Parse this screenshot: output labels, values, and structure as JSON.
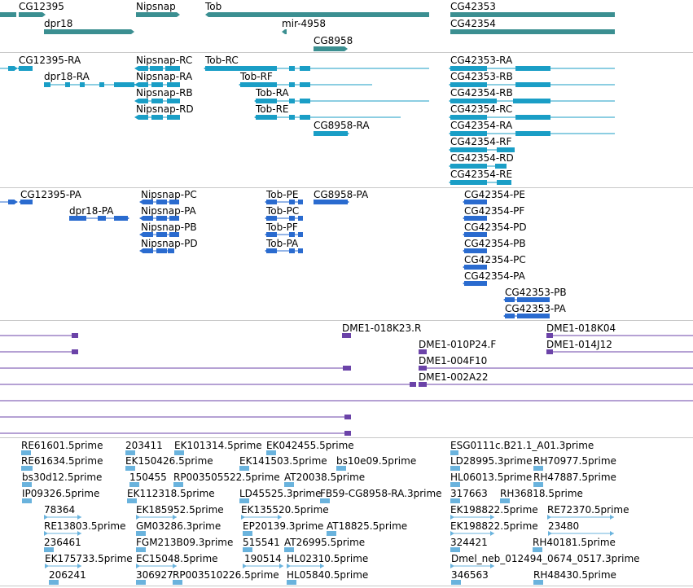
{
  "colors": {
    "gene": "#3b8f91",
    "mrna": "#1a9ec6",
    "protein": "#2a6bcf",
    "clone": "#6b43a8",
    "est": "#6ab3dd",
    "separator": "#c8c8c8"
  },
  "tracks": {
    "gene": {
      "labels": [
        "CG12395",
        "Nipsnap",
        "Tob",
        "CG42353",
        "dpr18",
        "mir-4958",
        "CG42354",
        "CG8958"
      ]
    },
    "transcript": {
      "labels": [
        "CG12395-RA",
        "Nipsnap-RC",
        "Tob-RC",
        "CG42353-RA",
        "dpr18-RA",
        "Nipsnap-RA",
        "Tob-RF",
        "CG42353-RB",
        "Nipsnap-RB",
        "Tob-RA",
        "CG42354-RB",
        "Nipsnap-RD",
        "Tob-RE",
        "CG42354-RC",
        "CG8958-RA",
        "CG42354-RA",
        "CG42354-RF",
        "CG42354-RD",
        "CG42354-RE"
      ]
    },
    "protein": {
      "labels": [
        "CG12395-PA",
        "Nipsnap-PC",
        "Tob-PE",
        "CG8958-PA",
        "CG42354-PE",
        "dpr18-PA",
        "Nipsnap-PA",
        "Tob-PC",
        "CG42354-PF",
        "Nipsnap-PB",
        "Tob-PF",
        "CG42354-PD",
        "Nipsnap-PD",
        "Tob-PA",
        "CG42354-PB",
        "CG42354-PC",
        "CG42354-PA",
        "CG42353-PB",
        "CG42353-PA"
      ]
    },
    "clone": {
      "labels": [
        "DME1-018K23.R",
        "DME1-018K04",
        "DME1-010P24.F",
        "DME1-014J12",
        "DME1-004F10",
        "DME1-002A22"
      ]
    },
    "est": {
      "labels": [
        "RE61601.5prime",
        "203411",
        "EK101314.5prime",
        "EK042455.5prime",
        "ESG0111c.B21.1_A01.3prime",
        "RE61634.5prime",
        "EK150426.5prime",
        "EK141503.5prime",
        "bs10e09.5prime",
        "LD28995.3prime",
        "RH70977.5prime",
        "bs30d12.5prime",
        "150455",
        "RP003505522.5prime",
        "AT20038.5prime",
        "HL06013.5prime",
        "RH47887.5prime",
        "IP09326.5prime",
        "EK112318.5prime",
        "LD45525.3prime",
        "FB59-CG8958-RA.3prime",
        "317663",
        "RH36818.5prime",
        "78364",
        "EK185952.5prime",
        "EK135520.5prime",
        "EK198822.5prime",
        "RE72370.5prime",
        "RE13803.5prime",
        "GM03286.3prime",
        "EP20139.3prime",
        "AT18825.5prime",
        "EK198822.5prime",
        "23480",
        "236461",
        "FGM213B09.3prime",
        "515541",
        "AT26995.5prime",
        "324421",
        "RH40181.5prime",
        "EK175733.5prime",
        "EC15048.5prime",
        "190514",
        "HL02310.5prime",
        "Dmel_neb_012494_0674_0517.3prime",
        "206241",
        "306927",
        "RP003510226.5prime",
        "HL05840.5prime",
        "346563",
        "RH48430.5prime"
      ]
    }
  }
}
